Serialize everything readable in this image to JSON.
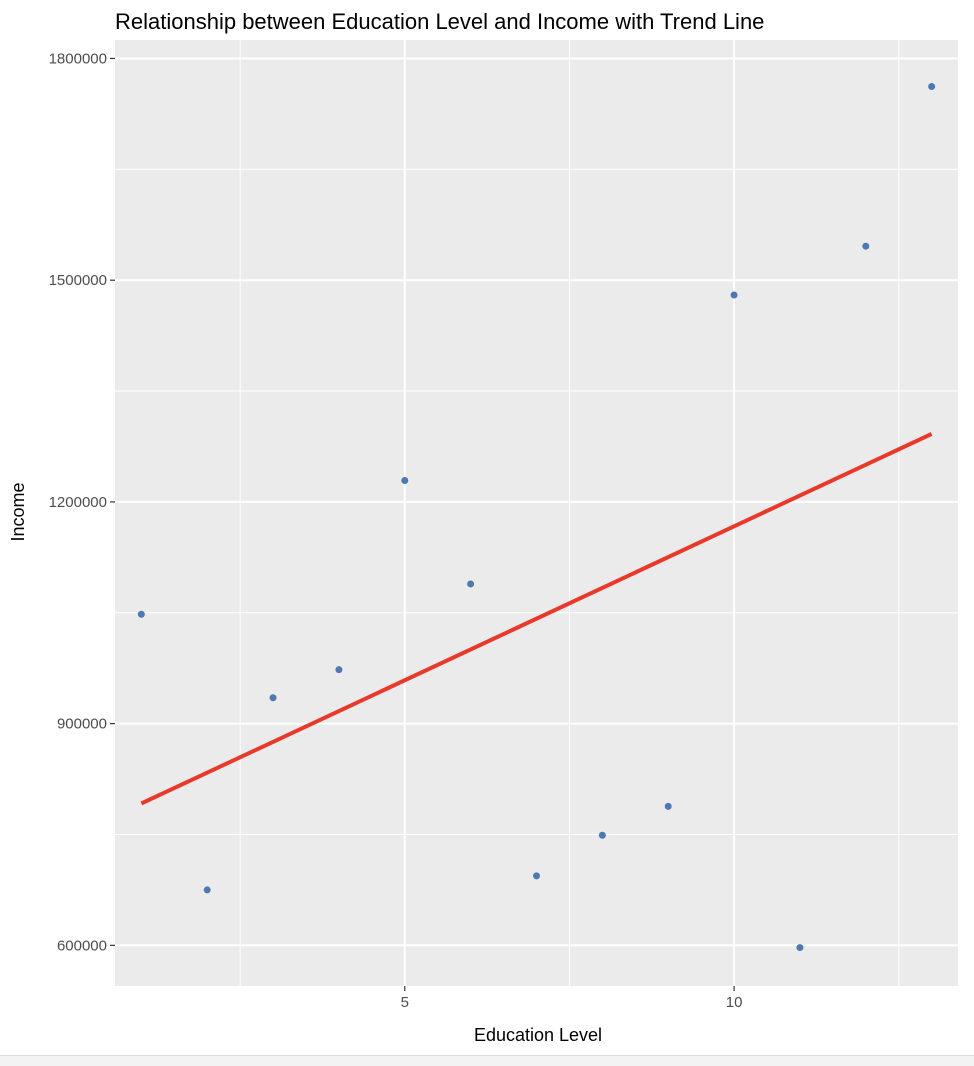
{
  "chart_data": {
    "type": "scatter",
    "title": "Relationship between Education Level and Income with Trend Line",
    "xlabel": "Education Level",
    "ylabel": "Income",
    "xlim": [
      0.6,
      13.4
    ],
    "ylim": [
      545000,
      1825000
    ],
    "x_ticks": [
      5,
      10
    ],
    "x_tick_labels": [
      "5",
      "10"
    ],
    "x_minor_ticks": [
      2.5,
      7.5,
      12.5
    ],
    "y_ticks": [
      600000,
      900000,
      1200000,
      1500000,
      1800000
    ],
    "y_tick_labels": [
      "600000",
      "900000",
      "1200000",
      "1500000",
      "1800000"
    ],
    "y_minor_ticks": [
      750000,
      1050000,
      1350000,
      1650000
    ],
    "grid": true,
    "series": [
      {
        "x": [
          1,
          2,
          3,
          4,
          5,
          6,
          7,
          8,
          9,
          10,
          11,
          12,
          13
        ],
        "y": [
          1048000,
          675000,
          935000,
          973000,
          1229000,
          1089000,
          694000,
          749000,
          788000,
          1480000,
          597000,
          1546000,
          1762000
        ]
      }
    ],
    "trend_line": {
      "x": [
        1,
        13
      ],
      "y": [
        792000,
        1292000
      ]
    },
    "colors": {
      "points": "#4e79b0",
      "trend": "#e8392b",
      "panel": "#ebebeb",
      "grid": "#ffffff"
    }
  }
}
